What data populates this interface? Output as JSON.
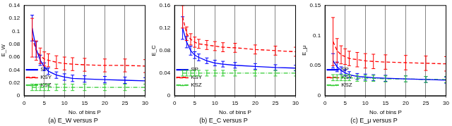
{
  "chart_data": [
    {
      "type": "line",
      "title": "(a) E_W versus P",
      "x_label": "No. of bins P",
      "y_label": "E_W",
      "x": [
        2,
        3,
        4,
        5,
        6,
        8,
        10,
        12,
        15,
        20,
        25,
        30
      ],
      "xlim": [
        0,
        30
      ],
      "xticks": [
        0,
        5,
        10,
        15,
        20,
        25,
        30
      ],
      "ylim": [
        0,
        0.14
      ],
      "yticks": [
        0,
        0.02,
        0.04,
        0.06,
        0.08,
        0.1,
        0.12,
        0.14
      ],
      "grid": "x",
      "legend": "upper right",
      "series": [
        {
          "name": "SP",
          "color": "#0000ff",
          "line_style": "solid",
          "values": [
            0.105,
            0.072,
            0.055,
            0.045,
            0.038,
            0.032,
            0.029,
            0.027,
            0.026,
            0.025,
            0.024,
            0.023
          ],
          "errors": [
            0.02,
            0.012,
            0.008,
            0.006,
            0.005,
            0.005,
            0.005,
            0.005,
            0.005,
            0.005,
            0.005,
            0.005
          ]
        },
        {
          "name": "KSY",
          "color": "#ff0000",
          "line_style": "dashed",
          "values": [
            0.09,
            0.07,
            0.062,
            0.057,
            0.055,
            0.052,
            0.05,
            0.049,
            0.048,
            0.047,
            0.047,
            0.046
          ],
          "errors": [
            0.03,
            0.015,
            0.012,
            0.011,
            0.01,
            0.01,
            0.01,
            0.01,
            0.01,
            0.01,
            0.01,
            0.01
          ]
        },
        {
          "name": "KSZ",
          "color": "#33cc33",
          "line_style": "dashdot",
          "values": [
            0.013,
            0.013,
            0.013,
            0.013,
            0.013,
            0.013,
            0.013,
            0.013,
            0.013,
            0.013,
            0.013,
            0.013
          ],
          "errors": [
            0.005,
            0.005,
            0.005,
            0.005,
            0.005,
            0.005,
            0.005,
            0.005,
            0.005,
            0.005,
            0.005,
            0.005
          ]
        }
      ]
    },
    {
      "type": "line",
      "title": "(b) E_C versus P",
      "x_label": "No. of bins P",
      "y_label": "E_C",
      "x": [
        2,
        3,
        4,
        5,
        6,
        8,
        10,
        12,
        15,
        20,
        25,
        30
      ],
      "xlim": [
        0,
        30
      ],
      "xticks": [
        0,
        5,
        10,
        15,
        20,
        25,
        30
      ],
      "ylim": [
        0,
        0.16
      ],
      "yticks": [
        0,
        0.04,
        0.08,
        0.12,
        0.16
      ],
      "grid": "x",
      "legend": "upper right",
      "series": [
        {
          "name": "SP",
          "color": "#0000ff",
          "line_style": "solid",
          "values": [
            0.12,
            0.095,
            0.08,
            0.072,
            0.068,
            0.062,
            0.058,
            0.056,
            0.054,
            0.052,
            0.05,
            0.049
          ],
          "errors": [
            0.02,
            0.01,
            0.008,
            0.006,
            0.006,
            0.005,
            0.005,
            0.005,
            0.005,
            0.005,
            0.005,
            0.005
          ]
        },
        {
          "name": "KSY",
          "color": "#ff0000",
          "line_style": "dashed",
          "values": [
            0.14,
            0.11,
            0.1,
            0.095,
            0.092,
            0.09,
            0.088,
            0.086,
            0.085,
            0.082,
            0.08,
            0.078
          ],
          "errors": [
            0.02,
            0.012,
            0.01,
            0.009,
            0.008,
            0.008,
            0.008,
            0.008,
            0.008,
            0.008,
            0.008,
            0.008
          ]
        },
        {
          "name": "KSZ",
          "color": "#33cc33",
          "line_style": "dashdot",
          "values": [
            0.04,
            0.04,
            0.04,
            0.04,
            0.04,
            0.04,
            0.04,
            0.04,
            0.04,
            0.04,
            0.04,
            0.04
          ],
          "errors": [
            0.005,
            0.005,
            0.005,
            0.005,
            0.005,
            0.005,
            0.005,
            0.005,
            0.005,
            0.005,
            0.005,
            0.005
          ]
        }
      ]
    },
    {
      "type": "line",
      "title": "(c) E_μ versus P",
      "x_label": "No. of bins P",
      "y_label": "E_μ",
      "x": [
        2,
        3,
        4,
        5,
        6,
        8,
        10,
        12,
        15,
        20,
        25,
        30
      ],
      "xlim": [
        0,
        30
      ],
      "xticks": [
        0,
        5,
        10,
        15,
        20,
        25,
        30
      ],
      "ylim": [
        0,
        0.15
      ],
      "yticks": [
        0,
        0.05,
        0.1,
        0.15
      ],
      "grid": "x",
      "legend": "upper right",
      "series": [
        {
          "name": "SP",
          "color": "#0000ff",
          "line_style": "solid",
          "values": [
            0.058,
            0.048,
            0.042,
            0.038,
            0.035,
            0.032,
            0.031,
            0.03,
            0.029,
            0.028,
            0.027,
            0.026
          ],
          "errors": [
            0.012,
            0.008,
            0.006,
            0.005,
            0.005,
            0.005,
            0.005,
            0.005,
            0.005,
            0.005,
            0.005,
            0.005
          ]
        },
        {
          "name": "KSY",
          "color": "#ff0000",
          "line_style": "dashed",
          "values": [
            0.09,
            0.075,
            0.068,
            0.065,
            0.062,
            0.06,
            0.058,
            0.057,
            0.056,
            0.055,
            0.054,
            0.053
          ],
          "errors": [
            0.04,
            0.02,
            0.015,
            0.013,
            0.012,
            0.012,
            0.012,
            0.012,
            0.012,
            0.012,
            0.012,
            0.012
          ]
        },
        {
          "name": "KSZ",
          "color": "#33cc33",
          "line_style": "dashdot",
          "values": [
            0.03,
            0.03,
            0.03,
            0.03,
            0.03,
            0.029,
            0.029,
            0.029,
            0.028,
            0.028,
            0.027,
            0.027
          ],
          "errors": [
            0.005,
            0.005,
            0.005,
            0.005,
            0.005,
            0.005,
            0.005,
            0.005,
            0.005,
            0.005,
            0.005,
            0.005
          ]
        }
      ]
    }
  ]
}
